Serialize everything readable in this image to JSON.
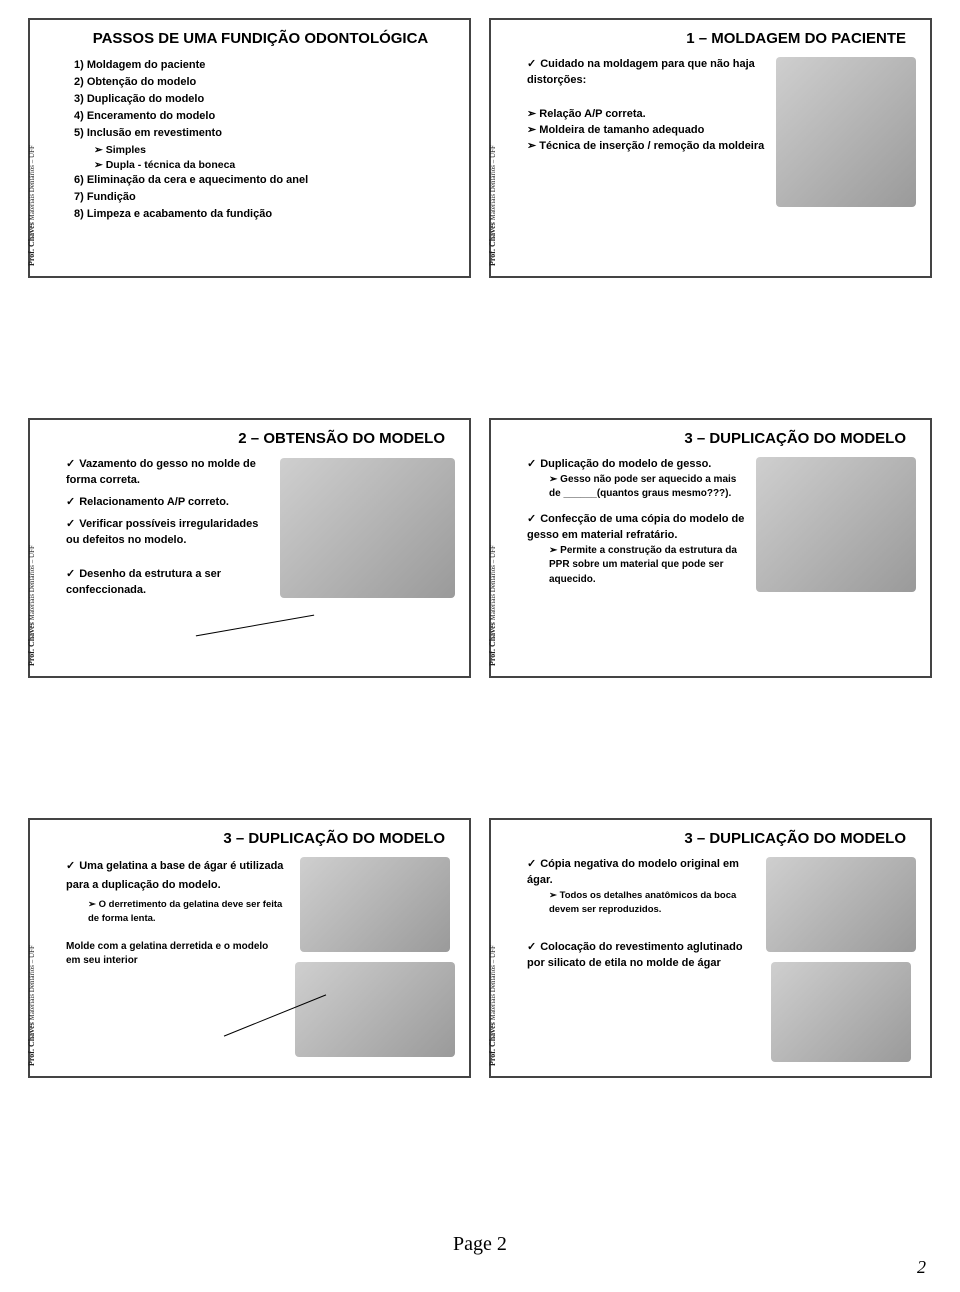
{
  "vlabel_html": "<b>Prof. Chaves</b> Materiais Dentários – UFF",
  "footer": "Page 2",
  "pagenum": "2",
  "slides": {
    "s1": {
      "title": "PASSOS DE UMA FUNDIÇÃO ODONTOLÓGICA",
      "items": [
        "1)  Moldagem do paciente",
        "2)  Obtenção do modelo",
        "3)  Duplicação do modelo",
        "4)  Enceramento do modelo",
        "5)  Inclusão em revestimento"
      ],
      "subs": [
        "Simples",
        "Dupla - técnica da boneca"
      ],
      "items2": [
        "6)  Eliminação da cera e aquecimento do anel",
        "7)  Fundição",
        "8)  Limpeza e acabamento da fundição"
      ]
    },
    "s2": {
      "title": "1 – MOLDAGEM DO PACIENTE",
      "lead": "Cuidado na moldagem para que não haja distorções:",
      "bullets": [
        "Relação A/P correta.",
        "Moldeira de tamanho adequado",
        "Técnica de inserção / remoção da moldeira"
      ]
    },
    "s3": {
      "title": "2 – OBTENSÃO DO MODELO",
      "c1": "Vazamento do gesso no molde de forma correta.",
      "c2": "Relacionamento A/P correto.",
      "c3": "Verificar possíveis irregularidades ou defeitos no modelo.",
      "c4": "Desenho da estrutura a ser confeccionada."
    },
    "s4": {
      "title": "3 – DUPLICAÇÃO DO MODELO",
      "c1": "Duplicação do modelo de gesso.",
      "c1a": "Gesso não pode ser aquecido a mais de ______(quantos graus mesmo???).",
      "c2": "Confecção de uma cópia do modelo de gesso em material refratário.",
      "c2a": "Permite a construção da estrutura da PPR sobre um material que pode ser aquecido."
    },
    "s5": {
      "title": "3 – DUPLICAÇÃO DO MODELO",
      "c1": "Uma gelatina a base de ágar é utilizada para a duplicação do modelo.",
      "c1a": "O derretimento da gelatina deve ser feita de forma lenta.",
      "c2": "Molde com a gelatina derretida e o modelo em seu interior"
    },
    "s6": {
      "title": "3 – DUPLICAÇÃO DO MODELO",
      "c1": "Cópia negativa do modelo original em ágar.",
      "c1a": "Todos os detalhes anatômicos da boca devem ser reproduzidos.",
      "c2": "Colocação do revestimento aglutinado por silicato de etila no molde de ágar"
    }
  }
}
